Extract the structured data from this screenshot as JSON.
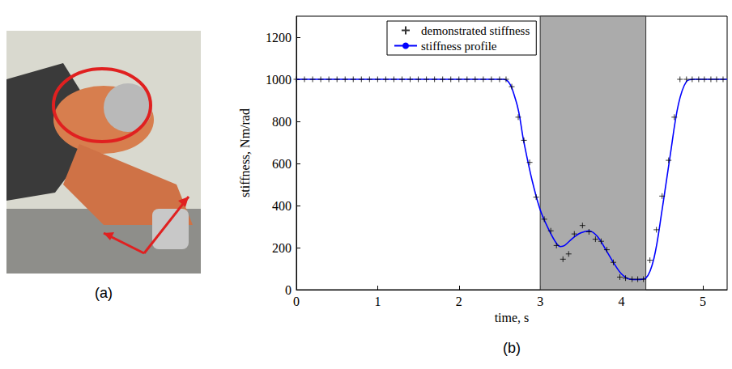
{
  "photo": {
    "caption": "(a)"
  },
  "chart_data": {
    "type": "line",
    "caption": "(b)",
    "xlabel": "time, s",
    "ylabel": "stiffness, Nm/rad",
    "xlim": [
      0,
      5.3
    ],
    "xticks": [
      0,
      1,
      2,
      3,
      4,
      5
    ],
    "ylim": [
      0,
      1300
    ],
    "yticks": [
      0,
      200,
      400,
      600,
      800,
      1000,
      1200
    ],
    "grid": false,
    "legend": "top",
    "shaded_x": [
      3,
      4.3
    ],
    "series": [
      {
        "name": "demonstrated stiffness",
        "type": "scatter",
        "color": "#000000",
        "marker": "plus",
        "x": [
          0,
          0.1,
          0.2,
          0.3,
          0.4,
          0.5,
          0.6,
          0.7,
          0.8,
          0.9,
          1.0,
          1.1,
          1.2,
          1.3,
          1.4,
          1.5,
          1.6,
          1.7,
          1.8,
          1.9,
          2.0,
          2.1,
          2.2,
          2.3,
          2.4,
          2.5,
          2.58,
          2.65,
          2.73,
          2.8,
          2.87,
          2.95,
          3.05,
          3.13,
          3.2,
          3.28,
          3.35,
          3.42,
          3.52,
          3.6,
          3.68,
          3.75,
          3.82,
          3.9,
          3.98,
          4.05,
          4.13,
          4.2,
          4.27,
          4.35,
          4.43,
          4.5,
          4.58,
          4.65,
          4.72,
          4.8,
          4.87,
          4.95,
          5.02,
          5.1,
          5.17,
          5.25
        ],
        "values": [
          1000,
          1000,
          1000,
          1000,
          1000,
          1000,
          1000,
          1000,
          1000,
          1000,
          1000,
          1000,
          1000,
          1000,
          1000,
          1000,
          1000,
          1000,
          1000,
          1000,
          1000,
          1000,
          1000,
          1000,
          1000,
          1000,
          1000,
          965,
          820,
          710,
          605,
          440,
          335,
          280,
          210,
          145,
          170,
          265,
          305,
          275,
          240,
          230,
          190,
          130,
          60,
          55,
          50,
          50,
          50,
          140,
          285,
          445,
          615,
          820,
          1000,
          1000,
          1000,
          1000,
          1000,
          1000,
          1000,
          1000
        ]
      },
      {
        "name": "stiffness profile",
        "type": "line",
        "color": "#0000ff",
        "line_style": "solid",
        "x": [
          0,
          1,
          2,
          2.55,
          2.7,
          2.8,
          2.9,
          3.0,
          3.1,
          3.2,
          3.25,
          3.3,
          3.4,
          3.5,
          3.6,
          3.7,
          3.8,
          3.9,
          4.0,
          4.1,
          4.2,
          4.3,
          4.4,
          4.5,
          4.6,
          4.7,
          4.8,
          4.9,
          5.3
        ],
        "values": [
          1000,
          1000,
          1000,
          1000,
          900,
          700,
          520,
          380,
          290,
          220,
          205,
          210,
          245,
          270,
          280,
          255,
          195,
          130,
          75,
          50,
          48,
          55,
          150,
          380,
          640,
          880,
          990,
          1000,
          1000
        ]
      }
    ]
  }
}
